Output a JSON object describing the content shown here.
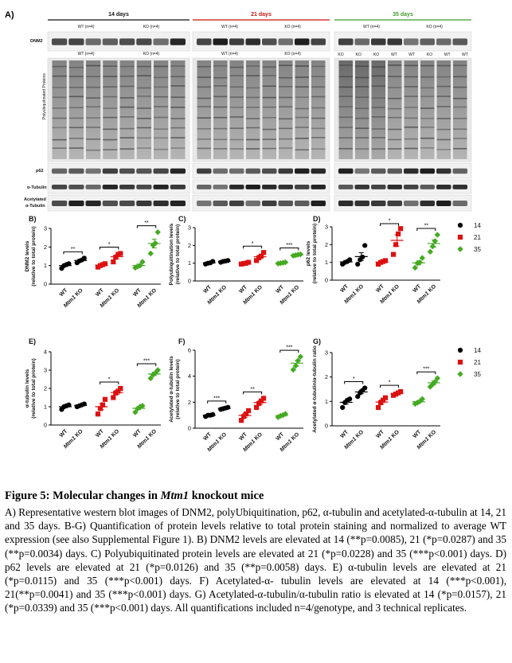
{
  "figure": {
    "panel_a": {
      "label": "A)",
      "timepoints": [
        {
          "label": "14 days",
          "color": "#111111",
          "groups": [
            "WT (n=4)",
            "KO (n=4)"
          ]
        },
        {
          "label": "21 days",
          "color": "#cc1111",
          "groups": [
            "WT (n=4)",
            "KO (n=4)"
          ]
        },
        {
          "label": "35 days",
          "color": "#3e9a2a",
          "groups": [
            "WT (n=4)",
            "KO (n=4)"
          ]
        }
      ],
      "row_labels": [
        "DNM2",
        "Polyubiquitinated Proteins",
        "p62",
        "α-Tubulin",
        "Acetylated\nα-Tubulin"
      ],
      "lane_labels_35": [
        "KO",
        "KO",
        "KO",
        "WT",
        "WT",
        "KO",
        "WT",
        "WT"
      ]
    },
    "legend": {
      "entries": [
        {
          "label": "14",
          "color": "#000000",
          "shape": "circle"
        },
        {
          "label": "21",
          "color": "#dd1111",
          "shape": "square"
        },
        {
          "label": "35",
          "color": "#44aa22",
          "shape": "diamond"
        }
      ]
    },
    "xtick_labels": [
      "WT",
      "Mtm1 KO",
      "WT",
      "Mtm1 KO",
      "WT",
      "Mtm1 KO"
    ]
  },
  "chart_data": [
    {
      "panel": "B)",
      "type": "scatter",
      "ylabel": "DNM2 levels\n(relative to total protein)",
      "ylim": [
        0,
        3
      ],
      "yticks": [
        0,
        1,
        2,
        3
      ],
      "categories": [
        "WT",
        "Mtm1 KO",
        "WT",
        "Mtm1 KO",
        "WT",
        "Mtm1 KO"
      ],
      "series": [
        {
          "name": "14",
          "wt": [
            0.85,
            1.0,
            1.05,
            1.1
          ],
          "ko": [
            1.15,
            1.25,
            1.3,
            1.4
          ],
          "sig": "**"
        },
        {
          "name": "21",
          "wt": [
            0.92,
            1.0,
            1.05,
            1.1
          ],
          "ko": [
            1.2,
            1.45,
            1.6,
            1.65
          ],
          "sig": "*"
        },
        {
          "name": "35",
          "wt": [
            0.88,
            0.95,
            1.0,
            1.2
          ],
          "ko": [
            1.65,
            2.1,
            2.2,
            2.8
          ],
          "sig": "**"
        }
      ]
    },
    {
      "panel": "C)",
      "type": "scatter",
      "ylabel": "Polyubiquitination levels\n(relative to total protein)",
      "ylim": [
        0,
        3
      ],
      "yticks": [
        0,
        1,
        2,
        3
      ],
      "categories": [
        "WT",
        "Mtm1 KO",
        "WT",
        "Mtm1 KO",
        "WT",
        "Mtm1 KO"
      ],
      "series": [
        {
          "name": "14",
          "wt": [
            0.95,
            1.0,
            1.02,
            1.1
          ],
          "ko": [
            1.05,
            1.1,
            1.12,
            1.15
          ],
          "sig": ""
        },
        {
          "name": "21",
          "wt": [
            0.95,
            0.98,
            1.0,
            1.05
          ],
          "ko": [
            1.15,
            1.3,
            1.4,
            1.6
          ],
          "sig": "*"
        },
        {
          "name": "35",
          "wt": [
            0.98,
            1.0,
            1.02,
            1.05
          ],
          "ko": [
            1.42,
            1.45,
            1.48,
            1.5
          ],
          "sig": "***"
        }
      ]
    },
    {
      "panel": "D)",
      "type": "scatter",
      "ylabel": "p62 levels\n(relative to total protein)",
      "ylim": [
        0,
        3
      ],
      "yticks": [
        0,
        1,
        2,
        3
      ],
      "categories": [
        "WT",
        "Mtm1 KO",
        "WT",
        "Mtm1 KO",
        "WT",
        "Mtm1 KO"
      ],
      "series": [
        {
          "name": "14",
          "wt": [
            0.9,
            1.0,
            1.05,
            1.15
          ],
          "ko": [
            0.9,
            1.15,
            1.3,
            1.95
          ],
          "sig": ""
        },
        {
          "name": "21",
          "wt": [
            0.9,
            1.0,
            1.05,
            1.1
          ],
          "ko": [
            1.45,
            2.0,
            2.6,
            2.9
          ],
          "sig": "*"
        },
        {
          "name": "35",
          "wt": [
            0.7,
            0.95,
            1.0,
            1.25
          ],
          "ko": [
            1.6,
            1.9,
            2.2,
            2.55
          ],
          "sig": "**"
        }
      ]
    },
    {
      "panel": "E)",
      "type": "scatter",
      "ylabel": "α-tubulin levels\n(relative to total protein)",
      "ylim": [
        0,
        4
      ],
      "yticks": [
        0,
        1,
        2,
        3,
        4
      ],
      "categories": [
        "WT",
        "Mtm1 KO",
        "WT",
        "Mtm1 KO",
        "WT",
        "Mtm1 KO"
      ],
      "series": [
        {
          "name": "14",
          "wt": [
            0.85,
            1.0,
            1.05,
            1.1
          ],
          "ko": [
            1.0,
            1.05,
            1.1,
            1.15
          ],
          "sig": ""
        },
        {
          "name": "21",
          "wt": [
            0.6,
            0.9,
            1.1,
            1.4
          ],
          "ko": [
            1.5,
            1.75,
            1.85,
            2.0
          ],
          "sig": "*"
        },
        {
          "name": "35",
          "wt": [
            0.7,
            0.9,
            1.0,
            1.05
          ],
          "ko": [
            2.55,
            2.75,
            2.85,
            3.0
          ],
          "sig": "***"
        }
      ]
    },
    {
      "panel": "F)",
      "type": "scatter",
      "ylabel": "Acetylated α-tubulin levels\n(relative to total protein)",
      "ylim": [
        0,
        6
      ],
      "yticks": [
        0,
        2,
        4,
        6
      ],
      "categories": [
        "WT",
        "Mtm1 KO",
        "WT",
        "Mtm1 KO",
        "WT",
        "Mtm1 KO"
      ],
      "series": [
        {
          "name": "14",
          "wt": [
            0.9,
            1.0,
            1.0,
            1.05
          ],
          "ko": [
            1.45,
            1.5,
            1.55,
            1.6
          ],
          "sig": "***"
        },
        {
          "name": "21",
          "wt": [
            0.6,
            0.9,
            1.1,
            1.35
          ],
          "ko": [
            1.6,
            1.9,
            2.1,
            2.3
          ],
          "sig": "**"
        },
        {
          "name": "35",
          "wt": [
            0.85,
            0.95,
            1.0,
            1.1
          ],
          "ko": [
            4.5,
            4.8,
            5.2,
            5.5
          ],
          "sig": "***"
        }
      ]
    },
    {
      "panel": "G)",
      "type": "scatter",
      "ylabel": "Acetylated α-tubulin/α-tubulin ratio",
      "ylim": [
        0,
        3
      ],
      "yticks": [
        0,
        1,
        2,
        3
      ],
      "categories": [
        "WT",
        "Mtm1 KO",
        "WT",
        "Mtm1 KO",
        "WT",
        "Mtm1 KO"
      ],
      "series": [
        {
          "name": "14",
          "wt": [
            0.75,
            0.95,
            1.05,
            1.1
          ],
          "ko": [
            1.2,
            1.35,
            1.45,
            1.55
          ],
          "sig": "*"
        },
        {
          "name": "21",
          "wt": [
            0.75,
            0.95,
            1.05,
            1.15
          ],
          "ko": [
            1.25,
            1.3,
            1.35,
            1.4
          ],
          "sig": "*"
        },
        {
          "name": "35",
          "wt": [
            0.9,
            0.95,
            1.0,
            1.1
          ],
          "ko": [
            1.6,
            1.7,
            1.8,
            1.95
          ],
          "sig": "***"
        }
      ]
    }
  ],
  "caption": {
    "title": "Figure 5: Molecular changes in Mtm1 knockout mice",
    "body": "A) Representative western blot images of DNM2, polyUbiquitination, p62, α-tubulin and acetylated-α-tubulin at 14, 21 and 35 days. B-G) Quantification of protein levels relative to total protein staining and normalized to average WT expression (see also Supplemental Figure 1). B) DNM2 levels are elevated at 14 (**p=0.0085), 21 (*p=0.0287) and 35 (**p=0.0034) days. C) Polyubiquitinated protein levels are elevated at 21 (*p=0.0228) and 35 (***p<0.001) days. D) p62 levels are elevated at 21 (*p=0.0126) and 35 (**p=0.0058) days. E) α-tubulin levels are elevated at 21 (*p=0.0115) and 35 (***p<0.001) days. F) Acetylated-α- tubulin levels are elevated at 14 (***p<0.001), 21(**p=0.0041) and 35 (***p<0.001) days. G) Acetylated-α-tubulin/α-tubulin ratio is elevated at 14 (*p=0.0157), 21 (*p=0.0339) and 35 (***p<0.001) days. All quantifications included n=4/genotype, and 3 technical replicates."
  }
}
